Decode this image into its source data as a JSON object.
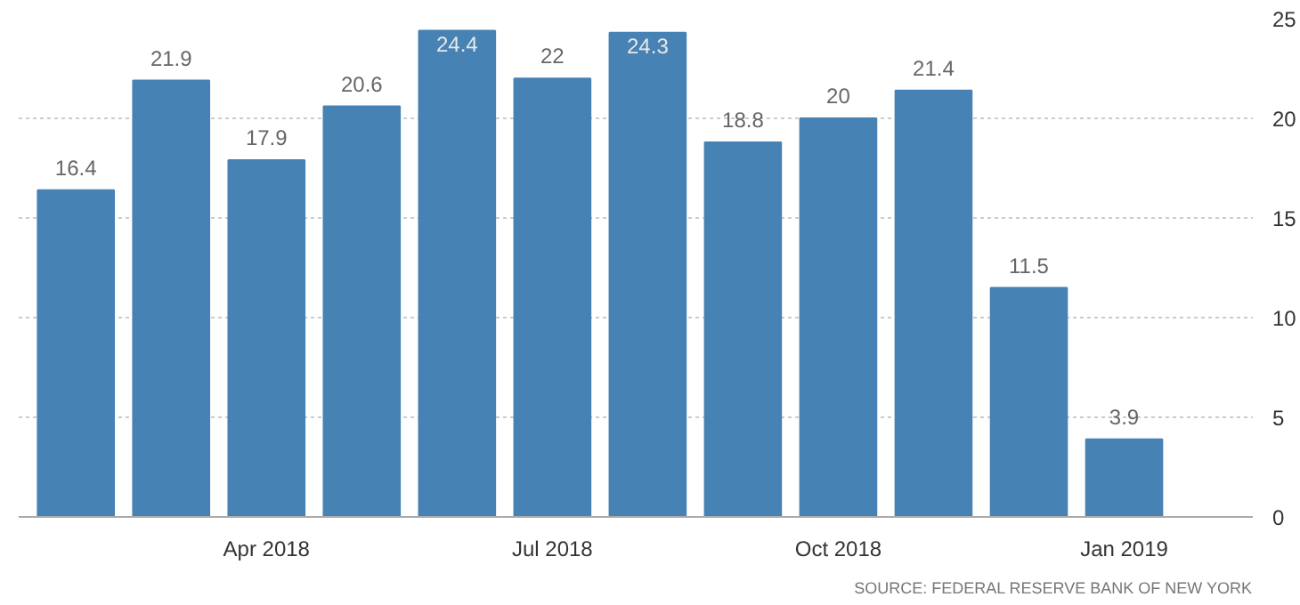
{
  "chart_data": {
    "type": "bar",
    "categories": [
      null,
      null,
      "Apr 2018",
      null,
      null,
      "Jul 2018",
      null,
      null,
      "Oct 2018",
      null,
      null,
      "Jan 2019"
    ],
    "values": [
      16.4,
      21.9,
      17.9,
      20.6,
      24.4,
      22,
      24.3,
      18.8,
      20,
      21.4,
      11.5,
      3.9
    ],
    "color": "#4682b4",
    "ylim": [
      0,
      25
    ],
    "yticks": [
      0,
      5,
      10,
      15,
      20,
      25
    ],
    "grid": "y",
    "data_labels": true,
    "annotations": [
      "SOURCE: FEDERAL RESERVE BANK OF NEW YORK"
    ]
  }
}
